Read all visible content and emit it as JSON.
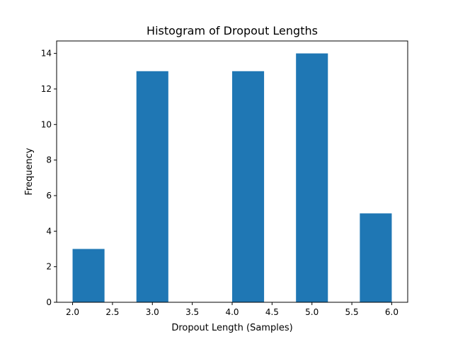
{
  "chart_data": {
    "type": "bar",
    "title": "Histogram of Dropout Lengths",
    "xlabel": "Dropout Length (Samples)",
    "ylabel": "Frequency",
    "xlim": [
      1.8,
      6.2
    ],
    "ylim": [
      0,
      14.7
    ],
    "xticks": [
      2.0,
      2.5,
      3.0,
      3.5,
      4.0,
      4.5,
      5.0,
      5.5,
      6.0
    ],
    "xtick_labels": [
      "2.0",
      "2.5",
      "3.0",
      "3.5",
      "4.0",
      "4.5",
      "5.0",
      "5.5",
      "6.0"
    ],
    "yticks": [
      0,
      2,
      4,
      6,
      8,
      10,
      12,
      14
    ],
    "ytick_labels": [
      "0",
      "2",
      "4",
      "6",
      "8",
      "10",
      "12",
      "14"
    ],
    "bins": [
      {
        "x0": 2.0,
        "x1": 2.4,
        "count": 3
      },
      {
        "x0": 2.4,
        "x1": 2.8,
        "count": 0
      },
      {
        "x0": 2.8,
        "x1": 3.2,
        "count": 13
      },
      {
        "x0": 3.2,
        "x1": 3.6,
        "count": 0
      },
      {
        "x0": 3.6,
        "x1": 4.0,
        "count": 0
      },
      {
        "x0": 4.0,
        "x1": 4.4,
        "count": 13
      },
      {
        "x0": 4.4,
        "x1": 4.8,
        "count": 0
      },
      {
        "x0": 4.8,
        "x1": 5.2,
        "count": 14
      },
      {
        "x0": 5.2,
        "x1": 5.6,
        "count": 0
      },
      {
        "x0": 5.6,
        "x1": 6.0,
        "count": 5
      }
    ],
    "bar_color": "#1f77b4",
    "grid": false,
    "legend": "none"
  }
}
